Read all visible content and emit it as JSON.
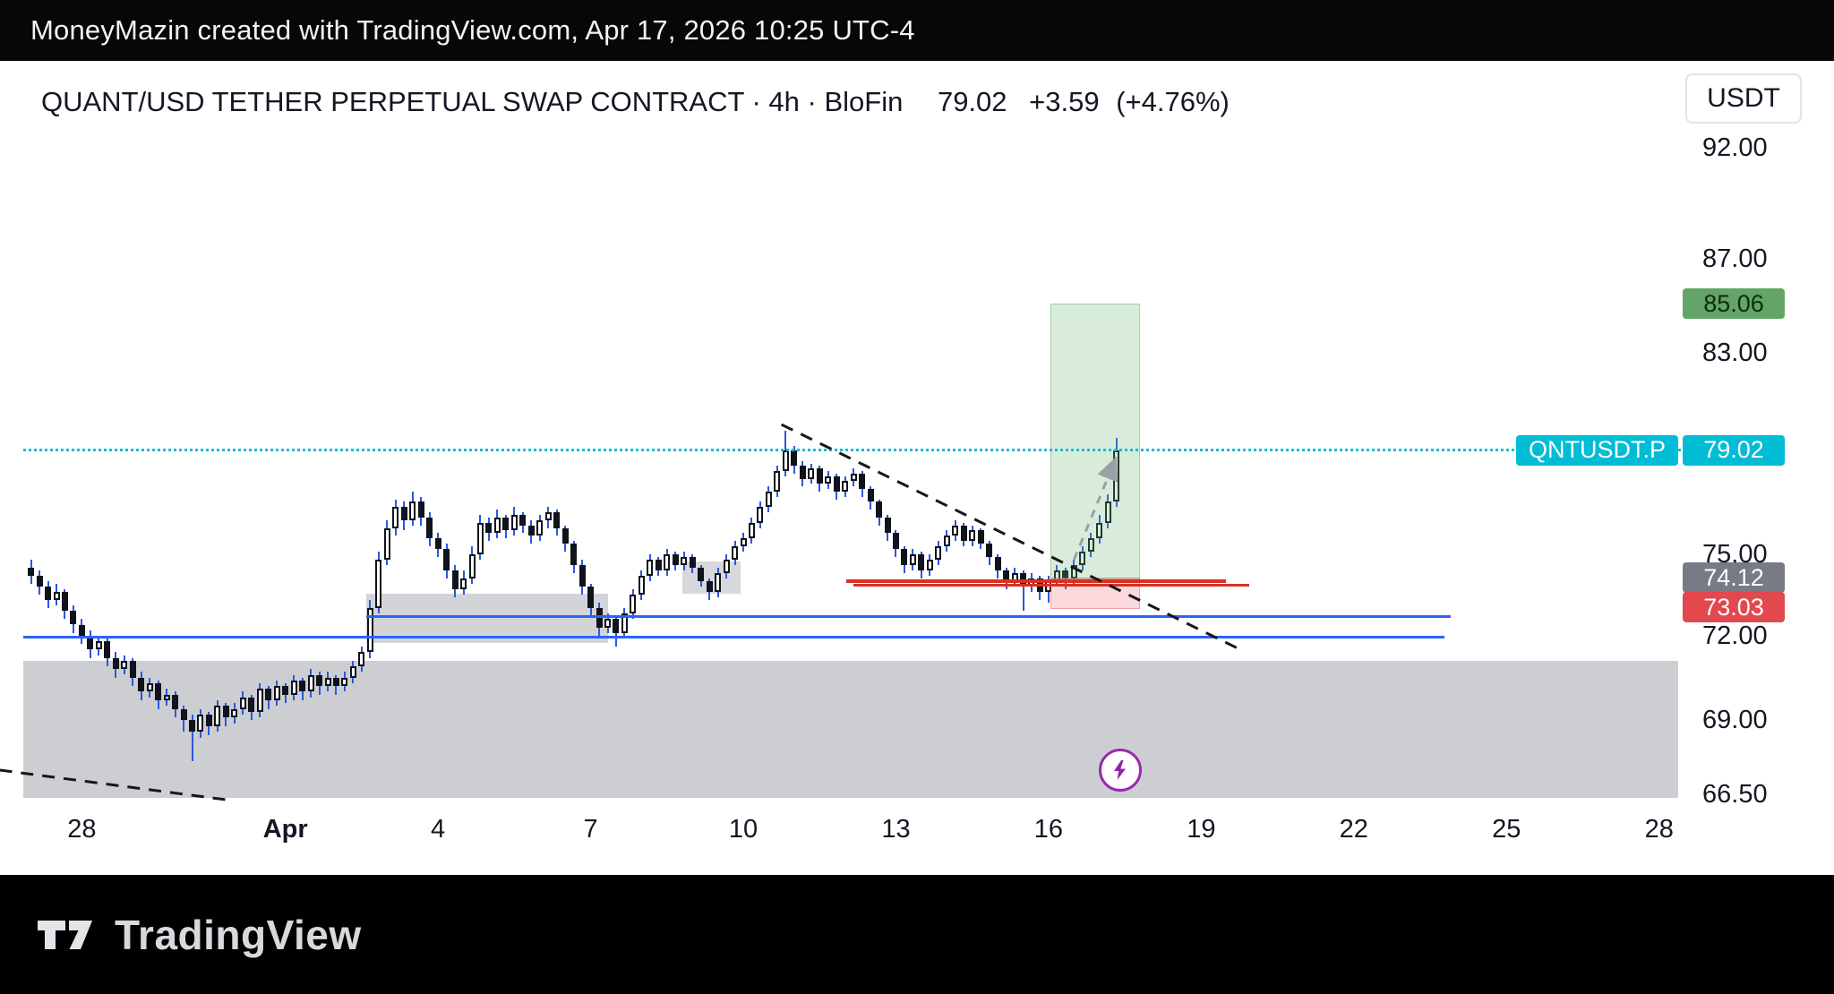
{
  "app": {
    "attribution": "MoneyMazin created with TradingView.com, Apr 17, 2026 10:25 UTC-4"
  },
  "header": {
    "full_title": "QUANT/USD TETHER PERPETUAL SWAP CONTRACT · 4h · BloFin",
    "price": "79.02",
    "change": "+3.59",
    "change_pct": "(+4.76%)",
    "currency": "USDT"
  },
  "symbol_flag": {
    "label": "QNTUSDT.P"
  },
  "price_badges": {
    "target": "85.06",
    "last": "79.02",
    "entry": "74.12",
    "stop": "73.03"
  },
  "colors": {
    "accent_cyan": "#00bcd4",
    "wick_blue": "#2b57e2",
    "line_blue": "#2962ff",
    "line_red": "#d93025",
    "badge_green": "#62a566",
    "badge_gray": "#787b86",
    "badge_red": "#e1494f",
    "marker_purple": "#9c27b0",
    "profit_fill": "rgba(103,179,112,0.25)",
    "risk_fill": "rgba(239,83,96,0.22)",
    "gray_zone_fill": "rgba(148,152,160,0.48)"
  },
  "footer": {
    "brand": "TradingView"
  },
  "chart_data": {
    "type": "candlestick",
    "symbol": "QNTUSDT.P",
    "exchange": "BloFin",
    "interval": "4h",
    "title": "QUANT/USD TETHER PERPETUAL SWAP CONTRACT",
    "start_time": "2026-03-27 00:00",
    "candle_interval_hours": 4,
    "price_scale_type": "log",
    "visible_price_range": [
      66.5,
      92.0
    ],
    "current_price": 79.02,
    "last_change": "+3.59 (+4.76%)",
    "y_ticks": [
      {
        "label": "92.00",
        "price": 92.0
      },
      {
        "label": "87.00",
        "price": 87.0
      },
      {
        "label": "83.00",
        "price": 83.0
      },
      {
        "label": "75.00",
        "price": 75.0
      },
      {
        "label": "72.00",
        "price": 72.0
      },
      {
        "label": "69.00",
        "price": 69.0
      },
      {
        "label": "66.50",
        "price": 66.5
      }
    ],
    "x_ticks": [
      {
        "label": "28",
        "i": 6
      },
      {
        "label": "Apr",
        "i": 30,
        "bold": true
      },
      {
        "label": "4",
        "i": 48
      },
      {
        "label": "7",
        "i": 66
      },
      {
        "label": "10",
        "i": 84
      },
      {
        "label": "13",
        "i": 102
      },
      {
        "label": "16",
        "i": 120
      },
      {
        "label": "19",
        "i": 138
      },
      {
        "label": "22",
        "i": 156
      },
      {
        "label": "25",
        "i": 174
      },
      {
        "label": "28",
        "i": 192
      }
    ],
    "candles_ohlc": [
      [
        74.5,
        74.8,
        73.9,
        74.2
      ],
      [
        74.2,
        74.4,
        73.5,
        73.8
      ],
      [
        73.8,
        74.0,
        73.0,
        73.3
      ],
      [
        73.3,
        73.9,
        73.1,
        73.6
      ],
      [
        73.6,
        73.7,
        72.6,
        72.9
      ],
      [
        72.9,
        73.1,
        72.1,
        72.4
      ],
      [
        72.4,
        72.6,
        71.7,
        72.0
      ],
      [
        72.0,
        72.2,
        71.2,
        71.5
      ],
      [
        71.5,
        72.0,
        71.3,
        71.8
      ],
      [
        71.8,
        71.9,
        70.9,
        71.2
      ],
      [
        71.2,
        71.4,
        70.5,
        70.8
      ],
      [
        70.8,
        71.3,
        70.6,
        71.1
      ],
      [
        71.1,
        71.2,
        70.2,
        70.5
      ],
      [
        70.5,
        70.7,
        69.7,
        70.0
      ],
      [
        70.0,
        70.5,
        69.8,
        70.3
      ],
      [
        70.3,
        70.4,
        69.4,
        69.7
      ],
      [
        69.7,
        70.1,
        69.5,
        69.9
      ],
      [
        69.9,
        70.0,
        69.1,
        69.4
      ],
      [
        69.4,
        69.5,
        68.6,
        69.0
      ],
      [
        69.0,
        69.2,
        67.6,
        68.6
      ],
      [
        68.6,
        69.4,
        68.4,
        69.2
      ],
      [
        69.2,
        69.3,
        68.5,
        68.8
      ],
      [
        68.8,
        69.7,
        68.6,
        69.5
      ],
      [
        69.5,
        69.6,
        68.8,
        69.1
      ],
      [
        69.1,
        69.6,
        68.9,
        69.4
      ],
      [
        69.4,
        70.0,
        69.2,
        69.8
      ],
      [
        69.8,
        69.9,
        69.0,
        69.3
      ],
      [
        69.3,
        70.3,
        69.1,
        70.1
      ],
      [
        70.1,
        70.2,
        69.4,
        69.7
      ],
      [
        69.7,
        70.4,
        69.5,
        70.2
      ],
      [
        70.2,
        70.3,
        69.6,
        69.9
      ],
      [
        69.9,
        70.6,
        69.7,
        70.4
      ],
      [
        70.4,
        70.5,
        69.7,
        70.0
      ],
      [
        70.0,
        70.8,
        69.8,
        70.6
      ],
      [
        70.6,
        70.7,
        69.9,
        70.2
      ],
      [
        70.2,
        70.7,
        70.0,
        70.5
      ],
      [
        70.5,
        70.6,
        69.9,
        70.2
      ],
      [
        70.2,
        70.7,
        70.0,
        70.5
      ],
      [
        70.5,
        71.1,
        70.3,
        70.9
      ],
      [
        70.9,
        71.6,
        70.7,
        71.4
      ],
      [
        71.4,
        73.3,
        71.2,
        73.0
      ],
      [
        73.0,
        75.1,
        72.8,
        74.8
      ],
      [
        74.8,
        76.3,
        74.6,
        76.0
      ],
      [
        76.0,
        77.1,
        75.7,
        76.8
      ],
      [
        76.8,
        77.0,
        75.9,
        76.3
      ],
      [
        76.3,
        77.4,
        76.1,
        77.0
      ],
      [
        77.0,
        77.2,
        76.1,
        76.4
      ],
      [
        76.4,
        76.6,
        75.3,
        75.6
      ],
      [
        75.6,
        75.8,
        74.9,
        75.2
      ],
      [
        75.2,
        75.4,
        74.1,
        74.4
      ],
      [
        74.4,
        74.6,
        73.4,
        73.7
      ],
      [
        73.7,
        74.4,
        73.5,
        74.1
      ],
      [
        74.1,
        75.3,
        73.9,
        75.0
      ],
      [
        75.0,
        76.5,
        74.8,
        76.2
      ],
      [
        76.2,
        76.4,
        75.5,
        75.8
      ],
      [
        75.8,
        76.7,
        75.6,
        76.4
      ],
      [
        76.4,
        76.5,
        75.6,
        75.9
      ],
      [
        75.9,
        76.8,
        75.7,
        76.5
      ],
      [
        76.5,
        76.6,
        75.8,
        76.1
      ],
      [
        76.1,
        76.3,
        75.4,
        75.7
      ],
      [
        75.7,
        76.5,
        75.5,
        76.3
      ],
      [
        76.3,
        76.8,
        76.0,
        76.6
      ],
      [
        76.6,
        76.7,
        75.7,
        76.0
      ],
      [
        76.0,
        76.1,
        75.1,
        75.4
      ],
      [
        75.4,
        75.5,
        74.3,
        74.6
      ],
      [
        74.6,
        74.8,
        73.5,
        73.8
      ],
      [
        73.8,
        73.9,
        72.7,
        73.0
      ],
      [
        73.0,
        73.2,
        72.0,
        72.3
      ],
      [
        72.3,
        72.8,
        72.1,
        72.6
      ],
      [
        72.6,
        72.7,
        71.6,
        72.1
      ],
      [
        72.1,
        73.0,
        71.9,
        72.8
      ],
      [
        72.8,
        73.7,
        72.6,
        73.5
      ],
      [
        73.5,
        74.4,
        73.3,
        74.2
      ],
      [
        74.2,
        75.0,
        74.0,
        74.8
      ],
      [
        74.8,
        74.9,
        74.2,
        74.4
      ],
      [
        74.4,
        75.2,
        74.2,
        75.0
      ],
      [
        75.0,
        75.1,
        74.4,
        74.6
      ],
      [
        74.6,
        75.1,
        74.4,
        74.9
      ],
      [
        74.9,
        75.0,
        74.3,
        74.5
      ],
      [
        74.5,
        74.6,
        73.8,
        74.0
      ],
      [
        74.0,
        74.1,
        73.3,
        73.6
      ],
      [
        73.6,
        74.5,
        73.4,
        74.3
      ],
      [
        74.3,
        75.0,
        74.1,
        74.8
      ],
      [
        74.8,
        75.5,
        74.6,
        75.3
      ],
      [
        75.3,
        75.8,
        75.1,
        75.6
      ],
      [
        75.6,
        76.4,
        75.4,
        76.2
      ],
      [
        76.2,
        77.0,
        76.0,
        76.8
      ],
      [
        76.8,
        77.6,
        76.6,
        77.4
      ],
      [
        77.4,
        78.4,
        77.2,
        78.2
      ],
      [
        78.2,
        79.8,
        78.0,
        79.0
      ],
      [
        79.0,
        79.2,
        78.1,
        78.4
      ],
      [
        78.4,
        78.6,
        77.6,
        77.9
      ],
      [
        77.9,
        78.5,
        77.7,
        78.3
      ],
      [
        78.3,
        78.4,
        77.4,
        77.7
      ],
      [
        77.7,
        78.2,
        77.5,
        78.0
      ],
      [
        78.0,
        78.1,
        77.1,
        77.4
      ],
      [
        77.4,
        78.0,
        77.2,
        77.8
      ],
      [
        77.8,
        78.3,
        77.6,
        78.1
      ],
      [
        78.1,
        78.2,
        77.2,
        77.5
      ],
      [
        77.5,
        77.6,
        76.7,
        77.0
      ],
      [
        77.0,
        77.1,
        76.1,
        76.4
      ],
      [
        76.4,
        76.5,
        75.5,
        75.8
      ],
      [
        75.8,
        75.9,
        74.9,
        75.2
      ],
      [
        75.2,
        75.3,
        74.3,
        74.6
      ],
      [
        74.6,
        75.2,
        74.4,
        75.0
      ],
      [
        75.0,
        75.1,
        74.1,
        74.4
      ],
      [
        74.4,
        75.0,
        74.2,
        74.8
      ],
      [
        74.8,
        75.5,
        74.6,
        75.3
      ],
      [
        75.3,
        75.9,
        75.1,
        75.7
      ],
      [
        75.7,
        76.3,
        75.5,
        76.1
      ],
      [
        76.1,
        76.2,
        75.3,
        75.5
      ],
      [
        75.5,
        76.1,
        75.3,
        75.9
      ],
      [
        75.9,
        76.0,
        75.2,
        75.4
      ],
      [
        75.4,
        75.5,
        74.6,
        74.9
      ],
      [
        74.9,
        75.0,
        74.1,
        74.4
      ],
      [
        74.4,
        74.5,
        73.7,
        74.0
      ],
      [
        74.0,
        74.5,
        73.8,
        74.3
      ],
      [
        74.3,
        74.4,
        72.9,
        73.8
      ],
      [
        73.8,
        74.3,
        73.6,
        74.1
      ],
      [
        74.1,
        74.2,
        73.3,
        73.6
      ],
      [
        73.6,
        74.2,
        73.2,
        74.0
      ],
      [
        74.0,
        74.6,
        73.8,
        74.4
      ],
      [
        74.4,
        74.5,
        73.7,
        74.1
      ],
      [
        74.1,
        74.8,
        73.9,
        74.6
      ],
      [
        74.6,
        75.3,
        74.4,
        75.1
      ],
      [
        75.1,
        75.8,
        74.9,
        75.6
      ],
      [
        75.6,
        76.5,
        75.4,
        76.2
      ],
      [
        76.2,
        77.3,
        76.0,
        77.0
      ],
      [
        77.0,
        79.5,
        76.8,
        79.02
      ]
    ],
    "drawings": {
      "current_price_line": {
        "price": 79.02,
        "style": "dotted",
        "color": "#16bdd1"
      },
      "long_position_tool": {
        "entry": 74.12,
        "stop": 73.03,
        "target": 85.06,
        "i1": 120.2,
        "i2": 130.6
      },
      "horizontal_lines": [
        {
          "price": 72.7,
          "i1": 39.5,
          "i2": 167.4,
          "color": "#2962ff",
          "width": 3
        },
        {
          "price": 71.95,
          "i1": -0.9,
          "i2": 166.7,
          "color": "#2962ff",
          "width": 3
        },
        {
          "price": 74.0,
          "i1": 96.1,
          "i2": 140.9,
          "color": "#d93025",
          "width": 4
        },
        {
          "price": 73.85,
          "i1": 97.0,
          "i2": 143.7,
          "color": "#d93025",
          "width": 3
        }
      ],
      "boxes": [
        {
          "p1": 71.1,
          "p2": 66.36,
          "i1": -0.9,
          "i2": 194.3,
          "fill": "rgba(148,152,160,0.48)"
        },
        {
          "p1": 73.52,
          "p2": 71.72,
          "i1": 39.5,
          "i2": 68.1,
          "fill": "rgba(148,152,160,0.42)"
        },
        {
          "p1": 74.73,
          "p2": 73.52,
          "i1": 76.8,
          "i2": 83.7,
          "fill": "rgba(148,152,160,0.38)"
        }
      ],
      "trend_lines": [
        {
          "i1": 88.5,
          "p1": 80.05,
          "i2": 142.6,
          "p2": 71.5,
          "color": "#15171c",
          "width": 3,
          "dash": "14 10"
        },
        {
          "i1": -3.7,
          "p1": 67.3,
          "i2": 23.2,
          "p2": 66.3,
          "color": "#15171c",
          "width": 3,
          "dash": "14 10"
        },
        {
          "i1": 123.0,
          "p1": 74.8,
          "i2": 127.8,
          "p2": 78.6,
          "color": "#9aa0a6",
          "width": 3,
          "dash": "9 8",
          "arrow": true
        }
      ],
      "marker": {
        "i": 128.5,
        "price": 67.3,
        "glyph": "lightning",
        "color": "#9c27b0"
      }
    }
  }
}
